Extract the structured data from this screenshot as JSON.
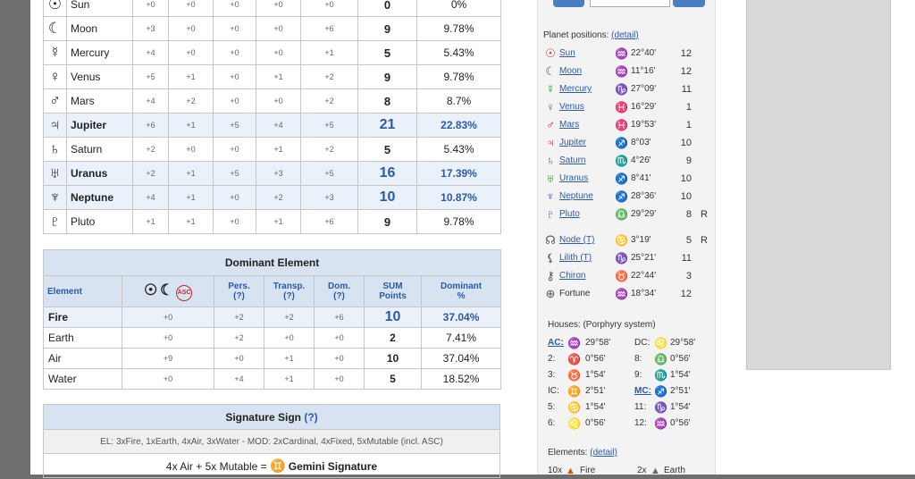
{
  "planets_table": {
    "rows": [
      {
        "symbol": "☉",
        "name": "Sun",
        "c1": "+0",
        "c2": "+0",
        "c3": "+0",
        "c4": "+0",
        "c5": "+0",
        "sum": "0",
        "pct": "0%",
        "highlight": false
      },
      {
        "symbol": "☾",
        "name": "Moon",
        "c1": "+3",
        "c2": "+0",
        "c3": "+0",
        "c4": "+0",
        "c5": "+6",
        "sum": "9",
        "pct": "9.78%",
        "highlight": false
      },
      {
        "symbol": "☿",
        "name": "Mercury",
        "c1": "+4",
        "c2": "+0",
        "c3": "+0",
        "c4": "+0",
        "c5": "+1",
        "sum": "5",
        "pct": "5.43%",
        "highlight": false
      },
      {
        "symbol": "♀",
        "name": "Venus",
        "c1": "+5",
        "c2": "+1",
        "c3": "+0",
        "c4": "+1",
        "c5": "+2",
        "sum": "9",
        "pct": "9.78%",
        "highlight": false
      },
      {
        "symbol": "♂",
        "name": "Mars",
        "c1": "+4",
        "c2": "+2",
        "c3": "+0",
        "c4": "+0",
        "c5": "+2",
        "sum": "8",
        "pct": "8.7%",
        "highlight": false
      },
      {
        "symbol": "♃",
        "name": "Jupiter",
        "c1": "+6",
        "c2": "+1",
        "c3": "+5",
        "c4": "+4",
        "c5": "+5",
        "sum": "21",
        "pct": "22.83%",
        "highlight": true
      },
      {
        "symbol": "♄",
        "name": "Saturn",
        "c1": "+2",
        "c2": "+0",
        "c3": "+0",
        "c4": "+1",
        "c5": "+2",
        "sum": "5",
        "pct": "5.43%",
        "highlight": false
      },
      {
        "symbol": "♅",
        "name": "Uranus",
        "c1": "+2",
        "c2": "+1",
        "c3": "+5",
        "c4": "+3",
        "c5": "+5",
        "sum": "16",
        "pct": "17.39%",
        "highlight": true
      },
      {
        "symbol": "♆",
        "name": "Neptune",
        "c1": "+4",
        "c2": "+1",
        "c3": "+0",
        "c4": "+2",
        "c5": "+3",
        "sum": "10",
        "pct": "10.87%",
        "highlight": true
      },
      {
        "symbol": "♇",
        "name": "Pluto",
        "c1": "+1",
        "c2": "+1",
        "c3": "+0",
        "c4": "+1",
        "c5": "+6",
        "sum": "9",
        "pct": "9.78%",
        "highlight": false
      }
    ]
  },
  "dominant_element": {
    "title": "Dominant Element",
    "headers": {
      "element": "Element",
      "symbols": [
        "☉",
        "☾",
        "ASC"
      ],
      "pers": "Pers.",
      "pers_q": "(?)",
      "transp": "Transp.",
      "transp_q": "(?)",
      "dom": "Dom.",
      "dom_q": "(?)",
      "sum": "SUM",
      "sum2": "Points",
      "dominant": "Dominant",
      "dominant2": "%"
    },
    "rows": [
      {
        "name": "Fire",
        "c1": "+0",
        "c2": "+2",
        "c3": "+2",
        "c4": "+6",
        "sum": "10",
        "pct": "37.04%",
        "highlight": true
      },
      {
        "name": "Earth",
        "c1": "+0",
        "c2": "+2",
        "c3": "+0",
        "c4": "+0",
        "sum": "2",
        "pct": "7.41%",
        "highlight": false
      },
      {
        "name": "Air",
        "c1": "+9",
        "c2": "+0",
        "c3": "+1",
        "c4": "+0",
        "sum": "10",
        "pct": "37.04%",
        "highlight": false
      },
      {
        "name": "Water",
        "c1": "+0",
        "c2": "+4",
        "c3": "+1",
        "c4": "+0",
        "sum": "5",
        "pct": "18.52%",
        "highlight": false
      }
    ]
  },
  "signature": {
    "title": "Signature Sign",
    "help": "(?)",
    "info": "EL: 3xFire, 1xEarth, 4xAir, 3xWater -  MOD: 2xCardinal, 4xFixed, 5xMutable (incl. ASC)",
    "formula": "4x Air + 5x Mutable = ",
    "sign_symbol": "♊",
    "sign_name": "Gemini Signature"
  },
  "sidebar": {
    "planet_positions_label": "Planet positions: ",
    "detail_link": "(detail)",
    "planets": [
      {
        "glyph": "☉",
        "name": "Sun",
        "sign": "♒",
        "deg": "22°40'",
        "house": "12",
        "retro": "",
        "color": "#c62828"
      },
      {
        "glyph": "☾",
        "name": "Moon",
        "sign": "♒",
        "deg": "11°16'",
        "house": "12",
        "retro": "",
        "color": "#2a5aa8"
      },
      {
        "glyph": "☿",
        "name": "Mercury",
        "sign": "♑",
        "deg": "27°09'",
        "house": "11",
        "retro": "",
        "color": "#2e8b2e"
      },
      {
        "glyph": "♀",
        "name": "Venus",
        "sign": "♓",
        "deg": "16°29'",
        "house": "1",
        "retro": "",
        "color": "#2e8b2e"
      },
      {
        "glyph": "♂",
        "name": "Mars",
        "sign": "♓",
        "deg": "19°53'",
        "house": "1",
        "retro": "",
        "color": "#c62828"
      },
      {
        "glyph": "♃",
        "name": "Jupiter",
        "sign": "♐",
        "deg": "8°03'",
        "house": "10",
        "retro": "",
        "color": "#c62828"
      },
      {
        "glyph": "♄",
        "name": "Saturn",
        "sign": "♏",
        "deg": "4°26'",
        "house": "9",
        "retro": "",
        "color": "#555555"
      },
      {
        "glyph": "♅",
        "name": "Uranus",
        "sign": "♐",
        "deg": "8°41'",
        "house": "10",
        "retro": "",
        "color": "#2e8b2e"
      },
      {
        "glyph": "♆",
        "name": "Neptune",
        "sign": "♐",
        "deg": "28°36'",
        "house": "10",
        "retro": "",
        "color": "#2a5aa8"
      },
      {
        "glyph": "♇",
        "name": "Pluto",
        "sign": "♎",
        "deg": "29°29'",
        "house": "8",
        "retro": "R",
        "color": "#7b3fa0"
      }
    ],
    "extra_points": [
      {
        "glyph": "☊",
        "name": "Node (T)",
        "sign": "♋",
        "deg": "3°19'",
        "house": "5",
        "retro": "R",
        "link": true
      },
      {
        "glyph": "⚸",
        "name": "Lilith (T)",
        "sign": "♑",
        "deg": "25°21'",
        "house": "11",
        "retro": "",
        "link": true
      },
      {
        "glyph": "⚷",
        "name": "Chiron",
        "sign": "♉",
        "deg": "22°44'",
        "house": "3",
        "retro": "",
        "link": true
      },
      {
        "glyph": "⊕",
        "name": "Fortune",
        "sign": "♒",
        "deg": "18°34'",
        "house": "12",
        "retro": "",
        "link": false
      }
    ],
    "houses_label": "Houses:",
    "houses_system": " (Porphyry system)",
    "houses": [
      {
        "l": "AC:",
        "ls": "♒",
        "ld": "29°58'",
        "r": "DC:",
        "rs": "♌",
        "rd": "29°58'",
        "link": true
      },
      {
        "l": "2:",
        "ls": "♈",
        "ld": "0°56'",
        "r": "8:",
        "rs": "♎",
        "rd": "0°56'",
        "link": false
      },
      {
        "l": "3:",
        "ls": "♉",
        "ld": "1°54'",
        "r": "9:",
        "rs": "♏",
        "rd": "1°54'",
        "link": false
      },
      {
        "l": "IC:",
        "ls": "♊",
        "ld": "2°51'",
        "r": "MC:",
        "rs": "♐",
        "rd": "2°51'",
        "link": false,
        "mc": true
      },
      {
        "l": "5:",
        "ls": "♋",
        "ld": "1°54'",
        "r": "11:",
        "rs": "♑",
        "rd": "1°54'",
        "link": false
      },
      {
        "l": "6:",
        "ls": "♌",
        "ld": "0°56'",
        "r": "12:",
        "rs": "♒",
        "rd": "0°56'",
        "link": false
      }
    ],
    "elements_label": "Elements: ",
    "elements_detail": "(detail)",
    "fire_count": "10x",
    "fire_label": "Fire",
    "earth_count": "2x",
    "earth_label": "Earth"
  }
}
